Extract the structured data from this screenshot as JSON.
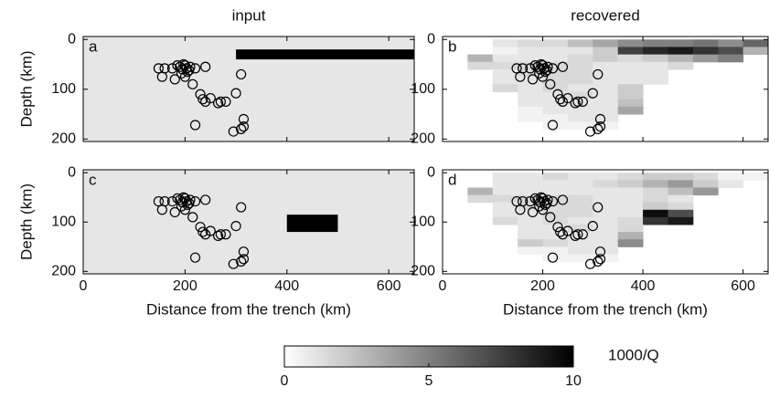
{
  "chart_data": [
    {
      "type": "heatmap",
      "title": "input",
      "panel_label": "a",
      "ylabel": "Depth (km)",
      "xlim": [
        0,
        650
      ],
      "ylim": [
        -6,
        205
      ],
      "xticks": [
        0,
        200,
        400,
        600
      ],
      "yticks": [
        0,
        100,
        200
      ],
      "x_edges": [
        0,
        300,
        650
      ],
      "y_edges": [
        -6,
        20,
        40,
        205
      ],
      "z": [
        [
          1,
          1
        ],
        [
          1,
          10
        ],
        [
          1,
          1
        ]
      ]
    },
    {
      "type": "heatmap",
      "title": "recovered",
      "panel_label": "b",
      "xlim": [
        0,
        650
      ],
      "ylim": [
        -6,
        205
      ],
      "xticks": [
        0,
        200,
        400,
        600
      ],
      "yticks": [
        0,
        100,
        200
      ],
      "x_edges": [
        50,
        100,
        150,
        200,
        250,
        300,
        350,
        400,
        450,
        500,
        550,
        600,
        650
      ],
      "y_edges": [
        0,
        15,
        30,
        45,
        60,
        75,
        90,
        105,
        120,
        135,
        150,
        165,
        180
      ],
      "z": [
        [
          null,
          1,
          1.5,
          1.5,
          2.5,
          3.5,
          4.5,
          5,
          5,
          5.5,
          4.5,
          6
        ],
        [
          null,
          0.5,
          1,
          1,
          1,
          2,
          7.5,
          8.5,
          9,
          8,
          7,
          3
        ],
        [
          3,
          1,
          1,
          1,
          1.5,
          2,
          1.5,
          2,
          3,
          4,
          5,
          null
        ],
        [
          1.5,
          1.5,
          1.5,
          1.5,
          1.5,
          1,
          1,
          1,
          1.5,
          null,
          null,
          null
        ],
        [
          null,
          1,
          1.5,
          1.5,
          1.5,
          1,
          1,
          1,
          null,
          null,
          null,
          null
        ],
        [
          null,
          1,
          1,
          1.5,
          1.5,
          1,
          1,
          1,
          null,
          null,
          null,
          null
        ],
        [
          null,
          1.5,
          1,
          1.5,
          1,
          1,
          2,
          null,
          null,
          null,
          null,
          null
        ],
        [
          null,
          null,
          1,
          1,
          1.5,
          1,
          2,
          null,
          null,
          null,
          null,
          null
        ],
        [
          null,
          null,
          1,
          1,
          1,
          1,
          2.5,
          null,
          null,
          null,
          null,
          null
        ],
        [
          null,
          null,
          0.5,
          1,
          1,
          1,
          3.5,
          null,
          null,
          null,
          null,
          null
        ],
        [
          null,
          null,
          0.5,
          0.5,
          1,
          1,
          null,
          null,
          null,
          null,
          null,
          null
        ],
        [
          null,
          null,
          null,
          0.5,
          0.5,
          0.5,
          null,
          null,
          null,
          null,
          null,
          null
        ]
      ]
    },
    {
      "type": "heatmap",
      "panel_label": "c",
      "xlabel": "Distance from the trench (km)",
      "ylabel": "Depth (km)",
      "xlim": [
        0,
        650
      ],
      "ylim": [
        -6,
        205
      ],
      "xticks": [
        0,
        200,
        400,
        600
      ],
      "yticks": [
        0,
        100,
        200
      ],
      "x_edges": [
        0,
        400,
        500,
        650
      ],
      "y_edges": [
        -6,
        85,
        120,
        205
      ],
      "z": [
        [
          1,
          1,
          1
        ],
        [
          1,
          10,
          1
        ],
        [
          1,
          1,
          1
        ]
      ]
    },
    {
      "type": "heatmap",
      "panel_label": "d",
      "xlabel": "Distance from the trench (km)",
      "xlim": [
        0,
        650
      ],
      "ylim": [
        -6,
        205
      ],
      "xticks": [
        0,
        200,
        400,
        600
      ],
      "yticks": [
        0,
        100,
        200
      ],
      "x_edges": [
        50,
        100,
        150,
        200,
        250,
        300,
        350,
        400,
        450,
        500,
        550,
        600,
        650
      ],
      "y_edges": [
        0,
        15,
        30,
        45,
        60,
        75,
        90,
        105,
        120,
        135,
        150,
        165,
        180
      ],
      "z": [
        [
          null,
          1,
          1,
          1.5,
          1,
          1,
          1.5,
          2,
          2,
          1.5,
          0.5,
          0.5
        ],
        [
          null,
          1,
          1,
          1,
          1,
          1.5,
          2,
          3,
          4,
          2,
          1,
          null
        ],
        [
          3,
          1,
          1,
          1,
          1,
          1,
          1,
          1.5,
          2.5,
          4,
          null,
          null
        ],
        [
          1.5,
          1.5,
          1.5,
          1.5,
          1.5,
          1,
          1,
          1.5,
          1,
          null,
          null,
          null
        ],
        [
          null,
          1,
          1.5,
          1.5,
          1.5,
          1,
          1,
          2,
          1.5,
          null,
          null,
          null
        ],
        [
          null,
          1,
          1,
          1.5,
          1.5,
          1,
          1,
          9.5,
          7,
          null,
          null,
          null
        ],
        [
          null,
          1.5,
          1,
          1.5,
          1,
          1,
          1.5,
          8,
          9,
          null,
          null,
          null
        ],
        [
          null,
          null,
          1,
          1,
          1.5,
          1,
          1.5,
          null,
          null,
          null,
          null,
          null
        ],
        [
          null,
          null,
          1,
          1,
          1,
          1,
          3,
          null,
          null,
          null,
          null,
          null
        ],
        [
          null,
          null,
          2,
          1.5,
          1,
          1,
          4.5,
          null,
          null,
          null,
          null,
          null
        ],
        [
          null,
          null,
          0.5,
          0.5,
          1,
          1,
          null,
          null,
          null,
          null,
          null,
          null
        ],
        [
          null,
          null,
          null,
          0.5,
          0.5,
          0.5,
          null,
          null,
          null,
          null,
          null,
          null
        ]
      ]
    }
  ],
  "events": {
    "x": [
      148,
      155,
      160,
      175,
      180,
      185,
      190,
      193,
      195,
      197,
      200,
      200,
      203,
      205,
      208,
      210,
      215,
      220,
      240,
      230,
      235,
      240,
      250,
      265,
      270,
      280,
      300,
      310,
      315,
      315,
      310,
      295,
      220
    ],
    "y": [
      58,
      75,
      58,
      58,
      80,
      52,
      55,
      68,
      60,
      50,
      75,
      52,
      58,
      65,
      62,
      55,
      90,
      58,
      55,
      110,
      120,
      125,
      118,
      128,
      125,
      125,
      108,
      70,
      160,
      175,
      180,
      185,
      172
    ]
  },
  "colorbar": {
    "clim": [
      0,
      10
    ],
    "ticks": [
      0,
      5,
      10
    ],
    "label": "1000/Q"
  }
}
